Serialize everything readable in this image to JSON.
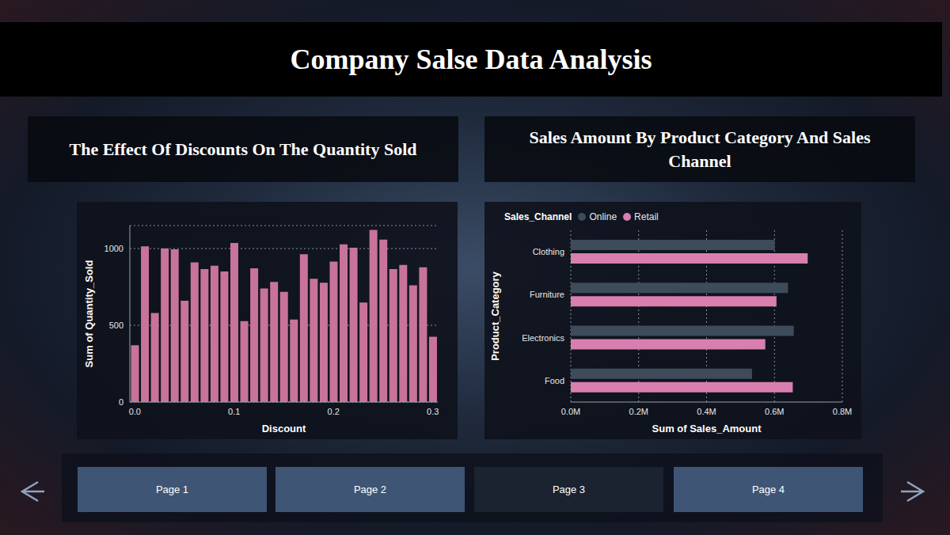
{
  "title": "Company Salse Data Analysis",
  "chart_data": [
    {
      "type": "bar",
      "title": "The Effect Of Discounts On The Quantity Sold",
      "x_label": "Discount",
      "y_label": "Sum of Quantity_Sold",
      "categories": [
        "0.0",
        null,
        null,
        null,
        null,
        null,
        null,
        null,
        null,
        null,
        "0.1",
        null,
        null,
        null,
        null,
        null,
        null,
        null,
        null,
        null,
        "0.2",
        null,
        null,
        null,
        null,
        null,
        null,
        null,
        null,
        null,
        "0.3"
      ],
      "values": [
        370,
        1015,
        580,
        1000,
        995,
        660,
        910,
        867,
        888,
        851,
        1037,
        527,
        872,
        740,
        782,
        718,
        537,
        963,
        803,
        777,
        915,
        1027,
        1005,
        649,
        1122,
        1058,
        867,
        894,
        761,
        878,
        425
      ],
      "color": "#c8739a",
      "ylim": [
        0,
        1150
      ],
      "yticks": [
        0,
        500,
        1000
      ],
      "grid": true
    },
    {
      "type": "bar",
      "title": "Sales Amount By Product Category And Sales Channel",
      "orientation": "horizontal",
      "x_label": "Sum of Sales_Amount",
      "y_label": "Product_Category",
      "categories": [
        "Clothing",
        "Furniture",
        "Electronics",
        "Food"
      ],
      "series": [
        {
          "name": "Online",
          "color": "#3d4b5a",
          "values": [
            601000,
            640000,
            657000,
            534000
          ]
        },
        {
          "name": "Retail",
          "color": "#d97fb0",
          "values": [
            698000,
            606000,
            573000,
            654000
          ]
        }
      ],
      "xlim": [
        0,
        800000
      ],
      "xticks": [
        {
          "value": 0,
          "label": "0.0M"
        },
        {
          "value": 200000,
          "label": "0.2M"
        },
        {
          "value": 400000,
          "label": "0.4M"
        },
        {
          "value": 600000,
          "label": "0.6M"
        },
        {
          "value": 800000,
          "label": "0.8M"
        }
      ],
      "legend": "top-left",
      "legend_title": "Sales_Channel",
      "grid": true
    }
  ],
  "navigation": [
    "Page 1",
    "Page 2",
    "Page 3",
    "Page 4"
  ]
}
